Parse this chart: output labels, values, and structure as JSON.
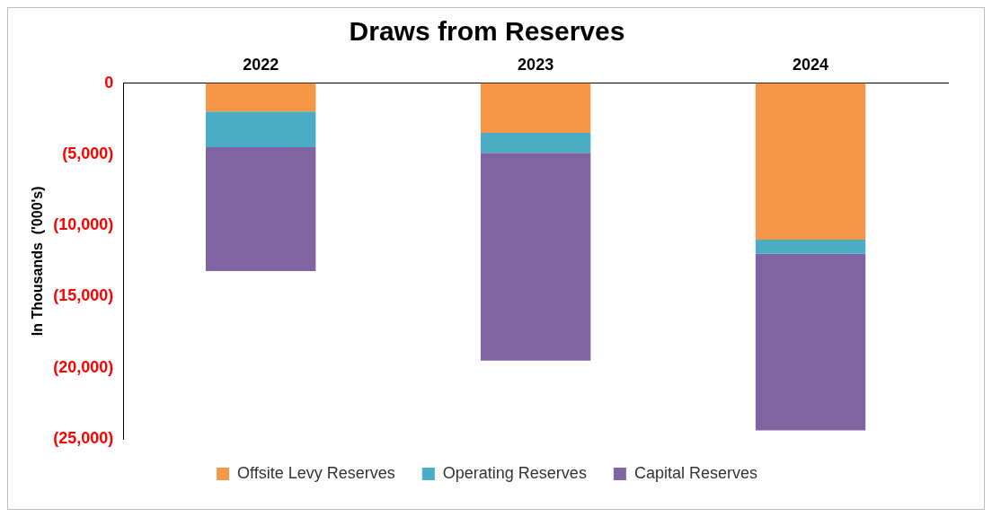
{
  "chart_data": {
    "type": "bar",
    "title": "Draws from Reserves",
    "ylabel": "In Thousands  ('000's)",
    "categories": [
      "2022",
      "2023",
      "2024"
    ],
    "stacked": true,
    "legend": "bottom",
    "grid": false,
    "series": [
      {
        "name": "Offsite Levy Reserves",
        "color": "#f79646",
        "values": [
          -2000,
          -3500,
          -11000
        ]
      },
      {
        "name": "Operating Reserves",
        "color": "#4bacc6",
        "values": [
          -2500,
          -1400,
          -1000
        ]
      },
      {
        "name": "Capital Reserves",
        "color": "#8064a2",
        "values": [
          -8700,
          -14600,
          -12400
        ]
      }
    ],
    "ylim": [
      -25000,
      0
    ],
    "yticks": [
      {
        "value": -25000,
        "label": "(25,000)"
      },
      {
        "value": -20000,
        "label": "(20,000)"
      },
      {
        "value": -15000,
        "label": "(15,000)"
      },
      {
        "value": -10000,
        "label": "(10,000)"
      },
      {
        "value": -5000,
        "label": "(5,000)"
      },
      0
    ]
  }
}
